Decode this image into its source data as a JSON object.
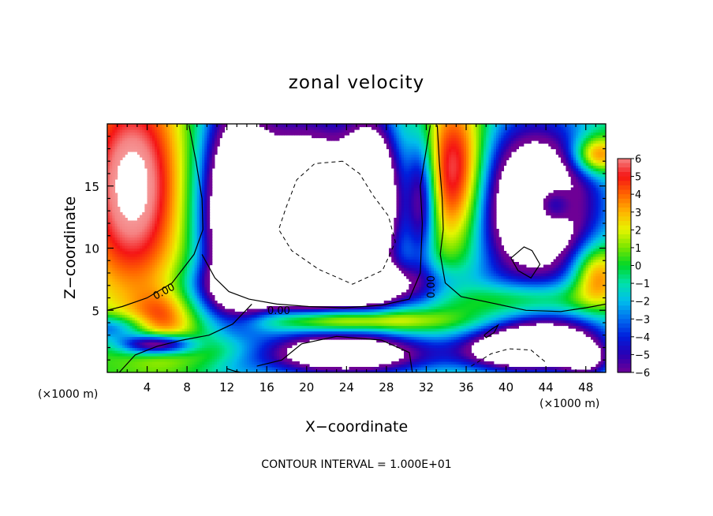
{
  "chart_data": {
    "type": "heatmap",
    "title": "zonal velocity",
    "xlabel": "X−coordinate",
    "ylabel": "Z−coordinate",
    "x_unit": "(×1000 m)",
    "y_unit": "(×1000 m)",
    "x_ticks": [
      "4",
      "8",
      "12",
      "16",
      "20",
      "24",
      "28",
      "32",
      "36",
      "40",
      "44",
      "48"
    ],
    "y_ticks": [
      "5",
      "10",
      "15"
    ],
    "xlim": [
      0,
      50
    ],
    "ylim": [
      0,
      20
    ],
    "colorbar": {
      "vmin": -6,
      "vmax": 6,
      "labels": [
        "6",
        "5",
        "4",
        "3",
        "2",
        "1",
        "0",
        "−1",
        "−2",
        "−3",
        "−4",
        "−5",
        "−6"
      ]
    },
    "contour_label": "0.00",
    "footer": "CONTOUR INTERVAL = 1.000E+01"
  }
}
